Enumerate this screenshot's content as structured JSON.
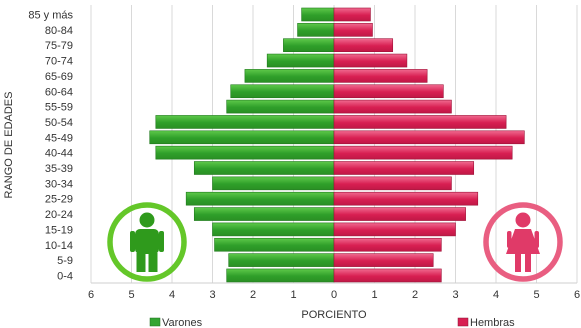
{
  "chart_data": {
    "type": "bar",
    "orientation": "horizontal",
    "layout": "population-pyramid",
    "categories": [
      "85 y más",
      "80-84",
      "75-79",
      "70-74",
      "65-69",
      "60-64",
      "55-59",
      "50-54",
      "45-49",
      "40-44",
      "35-39",
      "30-34",
      "25-29",
      "20-24",
      "15-19",
      "10-14",
      "5-9",
      "0-4"
    ],
    "series": [
      {
        "name": "Varones",
        "side": "left",
        "color": "#33a532",
        "values": [
          0.8,
          0.9,
          1.25,
          1.65,
          2.2,
          2.55,
          2.65,
          4.4,
          4.55,
          4.4,
          3.45,
          3.0,
          3.65,
          3.45,
          3.0,
          2.95,
          2.6,
          2.65
        ]
      },
      {
        "name": "Hembras",
        "side": "right",
        "color": "#d81f52",
        "values": [
          0.9,
          0.95,
          1.45,
          1.8,
          2.3,
          2.7,
          2.9,
          4.25,
          4.7,
          4.4,
          3.45,
          2.9,
          3.55,
          3.25,
          3.0,
          2.65,
          2.45,
          2.65
        ]
      }
    ],
    "xticks": [
      "6",
      "5",
      "4",
      "3",
      "2",
      "1",
      "0",
      "1",
      "2",
      "3",
      "4",
      "5",
      "6"
    ],
    "xlim": [
      -6,
      6
    ],
    "xlabel": "PORCIENTO",
    "ylabel": "RANGO DE EDADES",
    "grid": "vertical",
    "legend_position": "bottom",
    "icons": [
      {
        "name": "male-person-icon",
        "color": "#5cc41e"
      },
      {
        "name": "female-person-icon",
        "color": "#e8557a"
      }
    ]
  }
}
